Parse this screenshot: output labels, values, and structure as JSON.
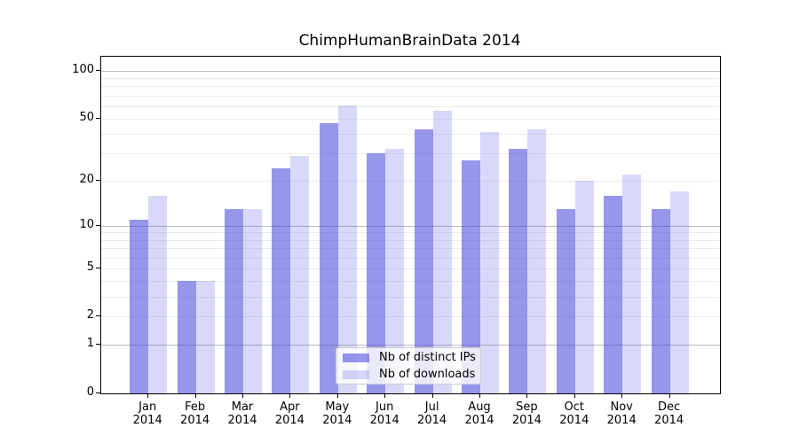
{
  "chart_data": {
    "type": "bar",
    "title": "ChimpHumanBrainData 2014",
    "categories": [
      "Jan",
      "Feb",
      "Mar",
      "Apr",
      "May",
      "Jun",
      "Jul",
      "Aug",
      "Sep",
      "Oct",
      "Nov",
      "Dec"
    ],
    "x_tick_second_line": "2014",
    "series": [
      {
        "name": "Nb of distinct IPs",
        "color": "rgba(70,70,220,0.57)",
        "values": [
          11,
          4,
          13,
          24,
          47,
          30,
          43,
          27,
          32,
          13,
          16,
          13
        ]
      },
      {
        "name": "Nb of downloads",
        "color": "rgba(70,70,220,0.21)",
        "values": [
          16,
          4,
          13,
          29,
          61,
          32,
          56,
          41,
          43,
          20,
          22,
          17
        ]
      }
    ],
    "xlabel": "",
    "ylabel": "",
    "yscale": "log1p",
    "ylim": [
      0,
      122
    ],
    "y_ticks": [
      0,
      1,
      2,
      5,
      10,
      20,
      50,
      100
    ],
    "y_major_gridlines": [
      1,
      10,
      100
    ],
    "y_minor_gridlines": [
      2,
      3,
      4,
      5,
      6,
      7,
      8,
      9,
      20,
      30,
      40,
      50,
      60,
      70,
      80,
      90
    ],
    "grid": true,
    "legend_position": "lower center",
    "colors": {
      "major_grid": "#bcbcbc",
      "minor_grid": "#ececec",
      "axis": "#000000",
      "background": "#ffffff"
    }
  }
}
